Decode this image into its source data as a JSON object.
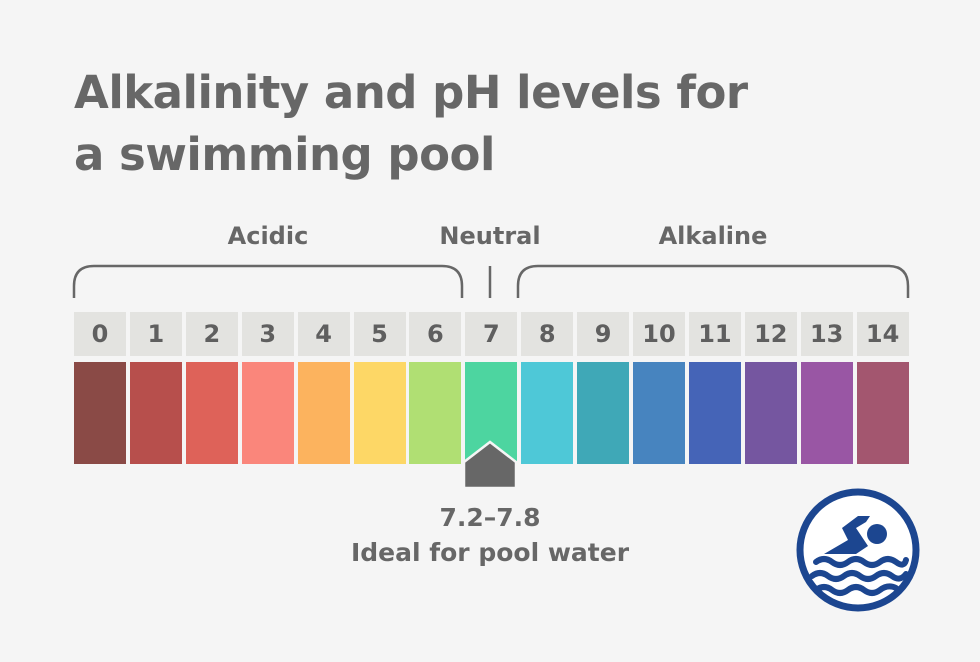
{
  "title": {
    "line1": "Alkalinity and pH levels for",
    "line2": "a swimming pool"
  },
  "groups": {
    "acidic": "Acidic",
    "neutral": "Neutral",
    "alkaline": "Alkaline"
  },
  "scale": [
    {
      "value": "0",
      "color": "#8a4a46"
    },
    {
      "value": "1",
      "color": "#b74f4c"
    },
    {
      "value": "2",
      "color": "#de6259"
    },
    {
      "value": "3",
      "color": "#fa867b"
    },
    {
      "value": "4",
      "color": "#fcb35e"
    },
    {
      "value": "5",
      "color": "#fdd766"
    },
    {
      "value": "6",
      "color": "#b0df73"
    },
    {
      "value": "7",
      "color": "#4dd5a0"
    },
    {
      "value": "8",
      "color": "#4ec8d7"
    },
    {
      "value": "9",
      "color": "#3fa8b7"
    },
    {
      "value": "10",
      "color": "#4784bf"
    },
    {
      "value": "11",
      "color": "#4564b7"
    },
    {
      "value": "12",
      "color": "#7556a0"
    },
    {
      "value": "13",
      "color": "#9956a4"
    },
    {
      "value": "14",
      "color": "#a3566f"
    }
  ],
  "ideal": {
    "range": "7.2–7.8",
    "text": "Ideal for pool water"
  },
  "icon": {
    "name": "swimmer-icon",
    "color": "#1c4690"
  },
  "colors": {
    "text": "#676767",
    "marker": "#676767",
    "number_bg": "#e3e3e0",
    "background": "#f5f5f5"
  }
}
